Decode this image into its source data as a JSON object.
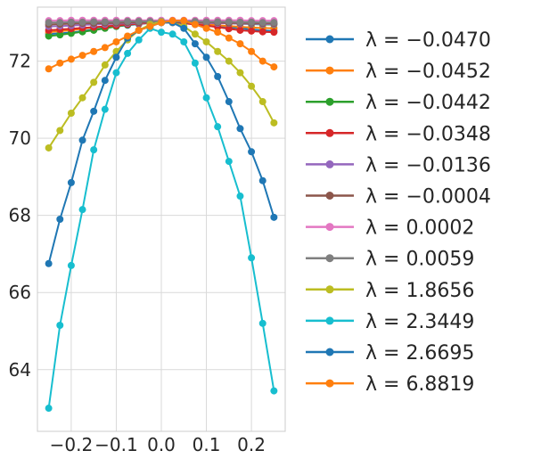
{
  "chart_data": {
    "type": "line",
    "title": "",
    "xlabel": "",
    "ylabel": "",
    "x": [
      -0.25,
      -0.225,
      -0.2,
      -0.175,
      -0.15,
      -0.125,
      -0.1,
      -0.075,
      -0.05,
      -0.025,
      0.0,
      0.025,
      0.05,
      0.075,
      0.1,
      0.125,
      0.15,
      0.175,
      0.2,
      0.225,
      0.25
    ],
    "xlim": [
      -0.275,
      0.275
    ],
    "ylim": [
      62.4,
      73.4
    ],
    "xticks": [
      -0.2,
      -0.1,
      0.0,
      0.1,
      0.2
    ],
    "xtick_labels": [
      "−0.2",
      "−0.1",
      "0.0",
      "0.1",
      "0.2"
    ],
    "yticks": [
      64,
      66,
      68,
      70,
      72
    ],
    "ytick_labels": [
      "64",
      "66",
      "68",
      "70",
      "72"
    ],
    "grid": true,
    "legend_position": "outside-right",
    "series": [
      {
        "name": "λ = −0.0470",
        "color": "#1f77b4",
        "values": [
          72.7,
          72.72,
          72.74,
          72.78,
          72.82,
          72.86,
          72.9,
          72.93,
          72.96,
          72.99,
          73.0,
          73.01,
          73.0,
          72.98,
          72.95,
          72.92,
          72.88,
          72.85,
          72.82,
          72.8,
          72.78
        ]
      },
      {
        "name": "λ = −0.0452",
        "color": "#ff7f0e",
        "values": [
          72.75,
          72.78,
          72.8,
          72.84,
          72.87,
          72.9,
          72.93,
          72.96,
          72.98,
          73.0,
          73.0,
          73.0,
          72.99,
          72.97,
          72.95,
          72.93,
          72.91,
          72.89,
          72.87,
          72.86,
          72.85
        ]
      },
      {
        "name": "λ = −0.0442",
        "color": "#2ca02c",
        "values": [
          72.65,
          72.68,
          72.72,
          72.76,
          72.8,
          72.85,
          72.9,
          72.94,
          72.97,
          73.0,
          73.01,
          73.02,
          73.02,
          73.01,
          73.0,
          72.99,
          72.98,
          72.97,
          72.96,
          72.95,
          72.95
        ]
      },
      {
        "name": "λ = −0.0348",
        "color": "#d62728",
        "values": [
          72.8,
          72.82,
          72.84,
          72.86,
          72.88,
          72.9,
          72.92,
          72.95,
          72.97,
          72.99,
          73.0,
          73.0,
          72.98,
          72.95,
          72.92,
          72.88,
          72.84,
          72.8,
          72.78,
          72.76,
          72.75
        ]
      },
      {
        "name": "λ = −0.0136",
        "color": "#9467bd",
        "values": [
          72.9,
          72.91,
          72.92,
          72.94,
          72.95,
          72.96,
          72.97,
          72.98,
          72.99,
          73.0,
          73.0,
          73.0,
          73.0,
          72.99,
          72.99,
          72.98,
          72.98,
          72.97,
          72.97,
          72.96,
          72.96
        ]
      },
      {
        "name": "λ = −0.0004",
        "color": "#8c564b",
        "values": [
          72.95,
          72.96,
          72.97,
          72.98,
          72.98,
          72.99,
          72.99,
          73.0,
          73.0,
          73.0,
          73.0,
          73.0,
          73.0,
          73.0,
          73.0,
          73.0,
          72.99,
          72.99,
          72.99,
          72.98,
          72.98
        ]
      },
      {
        "name": "λ = 0.0002",
        "color": "#e377c2",
        "values": [
          73.05,
          73.05,
          73.06,
          73.06,
          73.06,
          73.06,
          73.06,
          73.06,
          73.06,
          73.06,
          73.06,
          73.06,
          73.06,
          73.06,
          73.06,
          73.06,
          73.06,
          73.06,
          73.05,
          73.05,
          73.05
        ]
      },
      {
        "name": "λ = 0.0059",
        "color": "#7f7f7f",
        "values": [
          73.0,
          73.0,
          73.01,
          73.01,
          73.02,
          73.02,
          73.02,
          73.03,
          73.03,
          73.03,
          73.03,
          73.03,
          73.03,
          73.03,
          73.02,
          73.02,
          73.02,
          73.01,
          73.01,
          73.0,
          73.0
        ]
      },
      {
        "name": "λ = 1.8656",
        "color": "#bcbd22",
        "values": [
          69.75,
          70.2,
          70.65,
          71.05,
          71.45,
          71.9,
          72.25,
          72.55,
          72.8,
          72.95,
          73.02,
          73.0,
          72.9,
          72.7,
          72.5,
          72.25,
          72.0,
          71.7,
          71.35,
          70.95,
          70.4
        ]
      },
      {
        "name": "λ = 2.3449",
        "color": "#17becf",
        "values": [
          63.0,
          65.15,
          66.7,
          68.15,
          69.7,
          70.75,
          71.7,
          72.2,
          72.55,
          72.85,
          72.75,
          72.7,
          72.5,
          71.95,
          71.05,
          70.3,
          69.4,
          68.5,
          66.9,
          65.2,
          63.45
        ]
      },
      {
        "name": "λ = 2.6695",
        "color": "#1f77b4",
        "values": [
          66.75,
          67.9,
          68.85,
          69.95,
          70.7,
          71.5,
          72.1,
          72.6,
          72.8,
          72.9,
          73.0,
          73.0,
          72.85,
          72.45,
          72.1,
          71.6,
          70.95,
          70.25,
          69.65,
          68.9,
          67.95
        ]
      },
      {
        "name": "λ = 6.8819",
        "color": "#ff7f0e",
        "values": [
          71.8,
          71.95,
          72.05,
          72.15,
          72.25,
          72.35,
          72.5,
          72.65,
          72.8,
          72.9,
          73.0,
          73.05,
          73.05,
          72.95,
          72.85,
          72.75,
          72.6,
          72.45,
          72.25,
          72.0,
          71.85
        ]
      }
    ]
  }
}
